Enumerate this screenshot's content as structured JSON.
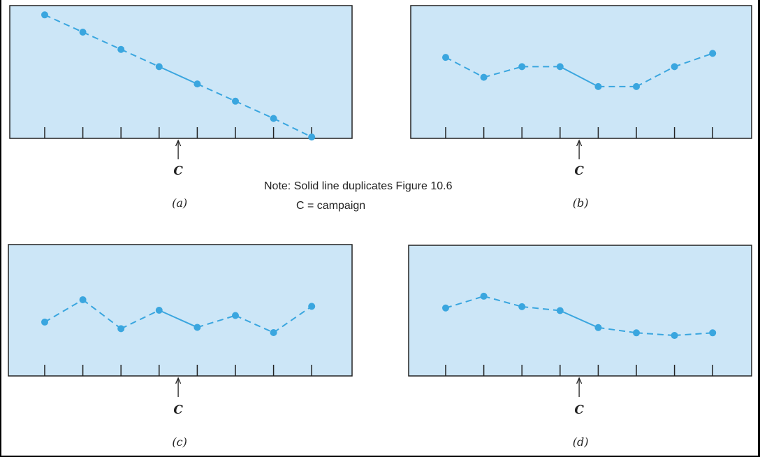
{
  "note": {
    "line1": "Note: Solid line duplicates Figure 10.6",
    "line2": "C = campaign"
  },
  "colors": {
    "panel_fill": "#cce6f7",
    "series": "#3aa6df",
    "frame": "#222222"
  },
  "chart_data": [
    {
      "type": "line",
      "caption": "(a)",
      "marker_label": "C",
      "x": [
        1,
        2,
        3,
        4,
        5,
        6,
        7,
        8
      ],
      "series": [
        {
          "values": [
            93,
            80,
            67,
            54,
            41,
            28,
            15,
            1
          ]
        }
      ],
      "segments": [
        "dashed",
        "dashed",
        "dashed",
        "solid",
        "dashed",
        "dashed",
        "dashed"
      ],
      "campaign_after_x": 4,
      "ylim": [
        0,
        100
      ],
      "grid": false
    },
    {
      "type": "line",
      "caption": "(b)",
      "marker_label": "C",
      "x": [
        1,
        2,
        3,
        4,
        5,
        6,
        7,
        8
      ],
      "series": [
        {
          "values": [
            61,
            46,
            54,
            54,
            39,
            39,
            54,
            64
          ]
        }
      ],
      "segments": [
        "dashed",
        "dashed",
        "dashed",
        "solid",
        "dashed",
        "dashed",
        "dashed"
      ],
      "campaign_after_x": 4,
      "ylim": [
        0,
        100
      ],
      "grid": false
    },
    {
      "type": "line",
      "caption": "(c)",
      "marker_label": "C",
      "x": [
        1,
        2,
        3,
        4,
        5,
        6,
        7,
        8
      ],
      "series": [
        {
          "values": [
            41,
            58,
            36,
            50,
            37,
            46,
            33,
            53
          ]
        }
      ],
      "segments": [
        "dashed",
        "dashed",
        "dashed",
        "solid",
        "dashed",
        "dashed",
        "dashed"
      ],
      "campaign_after_x": 4,
      "ylim": [
        0,
        100
      ],
      "grid": false
    },
    {
      "type": "line",
      "caption": "(d)",
      "marker_label": "C",
      "x": [
        1,
        2,
        3,
        4,
        5,
        6,
        7,
        8
      ],
      "series": [
        {
          "values": [
            52,
            61,
            53,
            50,
            37,
            33,
            31,
            33
          ]
        }
      ],
      "segments": [
        "dashed",
        "dashed",
        "dashed",
        "solid",
        "dashed",
        "dashed",
        "dashed"
      ],
      "campaign_after_x": 4,
      "ylim": [
        0,
        100
      ],
      "grid": false
    }
  ]
}
